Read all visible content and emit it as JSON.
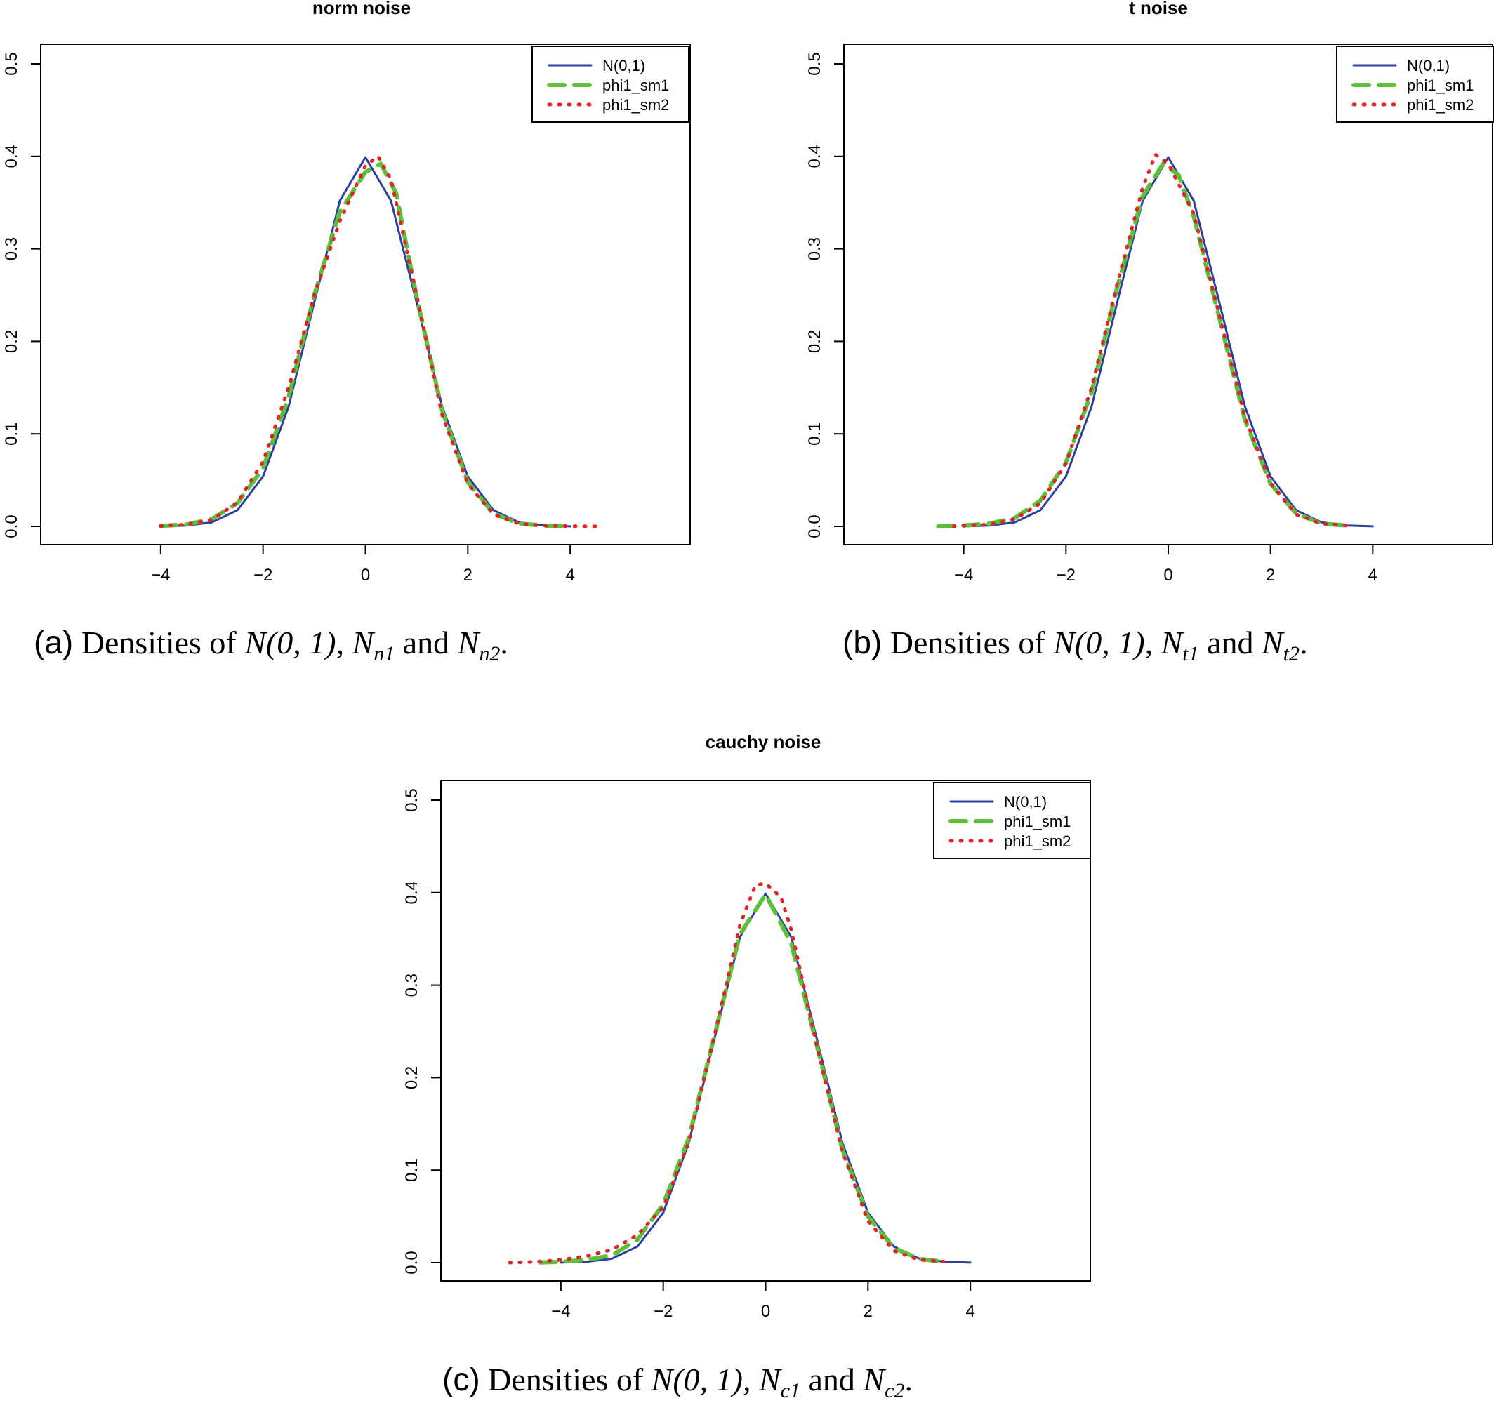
{
  "chart_data": [
    {
      "panel": "a",
      "type": "line",
      "title": "norm noise",
      "xlabel": "",
      "ylabel": "",
      "xlim": [
        -6,
        6
      ],
      "ylim": [
        0,
        0.5
      ],
      "xticks": [
        -4,
        -2,
        0,
        2,
        4
      ],
      "yticks": [
        0.0,
        0.1,
        0.2,
        0.3,
        0.4,
        0.5
      ],
      "grid": false,
      "legend": "top-right",
      "series": [
        {
          "name": "N(0,1)",
          "color": "#2b3f9e",
          "style": "solid",
          "x": [
            -4,
            -3.5,
            -3,
            -2.5,
            -2,
            -1.5,
            -1,
            -0.5,
            0,
            0.5,
            1,
            1.5,
            2,
            2.5,
            3,
            3.5,
            4
          ],
          "y": [
            0.0001,
            0.0009,
            0.0044,
            0.0175,
            0.054,
            0.1295,
            0.242,
            0.352,
            0.399,
            0.352,
            0.242,
            0.1295,
            0.054,
            0.0175,
            0.0044,
            0.0009,
            0.0001
          ]
        },
        {
          "name": "phi1_sm1",
          "color": "#5cc03a",
          "style": "dashed",
          "x": [
            -4,
            -3.5,
            -3,
            -2.5,
            -2,
            -1.5,
            -1,
            -0.5,
            0,
            0.3,
            0.6,
            1,
            1.5,
            2,
            2.5,
            3,
            3.5,
            4
          ],
          "y": [
            0.0005,
            0.002,
            0.008,
            0.025,
            0.063,
            0.14,
            0.25,
            0.34,
            0.383,
            0.392,
            0.36,
            0.248,
            0.125,
            0.048,
            0.014,
            0.003,
            0.0008,
            0.0002
          ]
        },
        {
          "name": "phi1_sm2",
          "color": "#e0242a",
          "style": "dotted",
          "x": [
            -4,
            -3.5,
            -3,
            -2.5,
            -2,
            -1.5,
            -1,
            -0.5,
            0,
            0.25,
            0.5,
            1,
            1.5,
            2,
            2.5,
            3,
            3.5,
            4,
            4.5
          ],
          "y": [
            0.0003,
            0.002,
            0.007,
            0.026,
            0.07,
            0.15,
            0.25,
            0.33,
            0.39,
            0.4,
            0.375,
            0.25,
            0.12,
            0.046,
            0.013,
            0.003,
            0.0008,
            0.0002,
            0.0001
          ]
        }
      ]
    },
    {
      "panel": "b",
      "type": "line",
      "title": "t noise",
      "xlabel": "",
      "ylabel": "",
      "xlim": [
        -6,
        6
      ],
      "ylim": [
        0,
        0.5
      ],
      "xticks": [
        -4,
        -2,
        0,
        2,
        4
      ],
      "yticks": [
        0.0,
        0.1,
        0.2,
        0.3,
        0.4,
        0.5
      ],
      "grid": false,
      "legend": "top-right",
      "series": [
        {
          "name": "N(0,1)",
          "color": "#2b3f9e",
          "style": "solid",
          "x": [
            -4,
            -3.5,
            -3,
            -2.5,
            -2,
            -1.5,
            -1,
            -0.5,
            0,
            0.5,
            1,
            1.5,
            2,
            2.5,
            3,
            3.5,
            4
          ],
          "y": [
            0.0001,
            0.0009,
            0.0044,
            0.0175,
            0.054,
            0.1295,
            0.242,
            0.352,
            0.399,
            0.352,
            0.242,
            0.1295,
            0.054,
            0.0175,
            0.0044,
            0.0009,
            0.0001
          ]
        },
        {
          "name": "phi1_sm1",
          "color": "#5cc03a",
          "style": "dashed",
          "x": [
            -4.5,
            -4,
            -3.5,
            -3,
            -2.5,
            -2,
            -1.5,
            -1,
            -0.5,
            -0.1,
            0.2,
            0.5,
            1,
            1.5,
            2,
            2.5,
            3,
            3.5
          ],
          "y": [
            0.0001,
            0.001,
            0.003,
            0.009,
            0.028,
            0.069,
            0.145,
            0.258,
            0.357,
            0.392,
            0.38,
            0.335,
            0.225,
            0.115,
            0.046,
            0.014,
            0.003,
            0.0008
          ]
        },
        {
          "name": "phi1_sm2",
          "color": "#e0242a",
          "style": "dotted",
          "x": [
            -4.2,
            -3.5,
            -3,
            -2.5,
            -2,
            -1.5,
            -1,
            -0.5,
            -0.25,
            0,
            0.5,
            1,
            1.5,
            2,
            2.5,
            3,
            3.5
          ],
          "y": [
            0.0002,
            0.002,
            0.008,
            0.025,
            0.068,
            0.15,
            0.262,
            0.366,
            0.402,
            0.392,
            0.338,
            0.228,
            0.118,
            0.047,
            0.013,
            0.003,
            0.0008
          ]
        }
      ]
    },
    {
      "panel": "c",
      "type": "line",
      "title": "cauchy noise",
      "xlabel": "",
      "ylabel": "",
      "xlim": [
        -6,
        6
      ],
      "ylim": [
        0,
        0.5
      ],
      "xticks": [
        -4,
        -2,
        0,
        2,
        4
      ],
      "yticks": [
        0.0,
        0.1,
        0.2,
        0.3,
        0.4,
        0.5
      ],
      "grid": false,
      "legend": "top-right",
      "series": [
        {
          "name": "N(0,1)",
          "color": "#2b3f9e",
          "style": "solid",
          "x": [
            -4,
            -3.5,
            -3,
            -2.5,
            -2,
            -1.5,
            -1,
            -0.5,
            0,
            0.5,
            1,
            1.5,
            2,
            2.5,
            3,
            3.5,
            4
          ],
          "y": [
            0.0001,
            0.0009,
            0.0044,
            0.0175,
            0.054,
            0.1295,
            0.242,
            0.352,
            0.399,
            0.352,
            0.242,
            0.1295,
            0.054,
            0.0175,
            0.0044,
            0.0009,
            0.0001
          ]
        },
        {
          "name": "phi1_sm1",
          "color": "#5cc03a",
          "style": "dashed",
          "x": [
            -4.4,
            -4,
            -3.5,
            -3,
            -2.5,
            -2,
            -1.5,
            -1,
            -0.5,
            0,
            0.5,
            1,
            1.5,
            2,
            2.5,
            3,
            3.5
          ],
          "y": [
            0.0002,
            0.001,
            0.003,
            0.008,
            0.025,
            0.063,
            0.135,
            0.245,
            0.355,
            0.398,
            0.345,
            0.235,
            0.122,
            0.05,
            0.016,
            0.004,
            0.001
          ]
        },
        {
          "name": "phi1_sm2",
          "color": "#e0242a",
          "style": "dotted",
          "x": [
            -5,
            -4.5,
            -4,
            -3.5,
            -3,
            -2.5,
            -2,
            -1.5,
            -1,
            -0.5,
            -0.2,
            0,
            0.3,
            0.5,
            1,
            1.5,
            2,
            2.5,
            3,
            3.5
          ],
          "y": [
            0.0001,
            0.0008,
            0.003,
            0.007,
            0.014,
            0.03,
            0.06,
            0.13,
            0.245,
            0.365,
            0.408,
            0.41,
            0.395,
            0.36,
            0.235,
            0.12,
            0.045,
            0.013,
            0.003,
            0.001
          ]
        }
      ]
    }
  ],
  "captions": [
    {
      "label": "(a)",
      "text": "Densities of",
      "dist": "N(0, 1),",
      "sym1": "N",
      "sub1": "n1",
      "and": "and",
      "sym2": "N",
      "sub2": "n2",
      "end": "."
    },
    {
      "label": "(b)",
      "text": "Densities of",
      "dist": "N(0, 1),",
      "sym1": "N",
      "sub1": "t1",
      "and": "and",
      "sym2": "N",
      "sub2": "t2",
      "end": "."
    },
    {
      "label": "(c)",
      "text": "Densities of",
      "dist": "N(0, 1),",
      "sym1": "N",
      "sub1": "c1",
      "and": "and",
      "sym2": "N",
      "sub2": "c2",
      "end": "."
    }
  ]
}
